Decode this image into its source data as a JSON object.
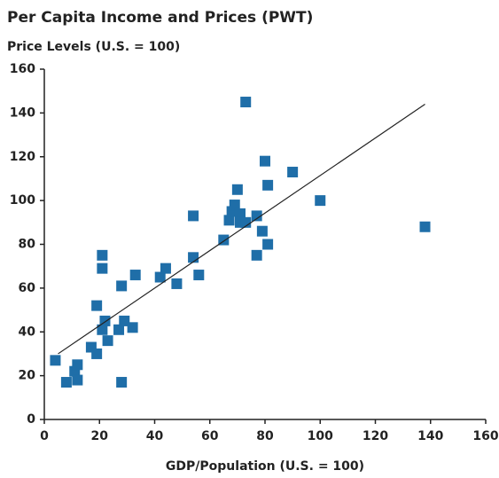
{
  "chart_data": {
    "type": "scatter",
    "title": "Per Capita Income and Prices (PWT)",
    "y_label": "Price Levels (U.S. = 100)",
    "x_label": "GDP/Population (U.S. = 100)",
    "color": "#1f6ea8",
    "x": [
      4,
      8,
      11,
      12,
      12,
      17,
      19,
      19,
      21,
      21,
      21,
      22,
      23,
      27,
      28,
      28,
      29,
      32,
      33,
      42,
      44,
      48,
      54,
      54,
      56,
      65,
      67,
      68,
      69,
      70,
      71,
      71,
      73,
      73,
      77,
      77,
      79,
      80,
      81,
      81,
      90,
      100,
      138
    ],
    "values": [
      27,
      17,
      22,
      25,
      18,
      33,
      30,
      52,
      75,
      69,
      41,
      45,
      36,
      41,
      61,
      17,
      45,
      42,
      66,
      65,
      69,
      62,
      74,
      93,
      66,
      82,
      91,
      95,
      98,
      105,
      94,
      90,
      90,
      145,
      75,
      93,
      86,
      118,
      107,
      80,
      113,
      100,
      88
    ],
    "trendline": {
      "x": [
        5,
        138
      ],
      "y": [
        30,
        144
      ]
    },
    "xlim": [
      0,
      160
    ],
    "xticks": [
      0,
      20,
      40,
      60,
      80,
      100,
      120,
      140,
      160
    ],
    "ylim": [
      0,
      160
    ],
    "yticks": [
      0,
      20,
      40,
      60,
      80,
      100,
      120,
      140,
      160
    ]
  }
}
